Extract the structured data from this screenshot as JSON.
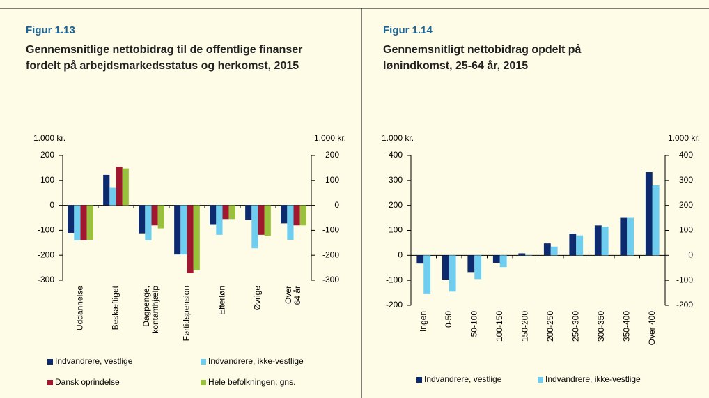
{
  "chart_data": [
    {
      "type": "bar",
      "title": "Figur 1.13",
      "subtitle": "Gennemsnitlige nettobidrag til de offentlige finanser fordelt på arbejdsmarkedsstatus og herkomst, 2015",
      "y_unit": "1.000 kr.",
      "y2_unit": "1.000 kr.",
      "categories": [
        "Uddannelse",
        "Beskæftiget",
        "Dagpenge, kontanthjælp",
        "Førtidspension",
        "Efterløn",
        "Øvrige",
        "Over 64 år"
      ],
      "series": [
        {
          "name": "Indvandrere, vestlige",
          "color": "#0d2a6e",
          "values": [
            -110,
            122,
            -112,
            -197,
            -78,
            -58,
            -72
          ]
        },
        {
          "name": "Indvandrere, ikke-vestlige",
          "color": "#6fcdf0",
          "values": [
            -140,
            70,
            -140,
            -197,
            -118,
            -172,
            -138
          ]
        },
        {
          "name": "Dansk oprindelse",
          "color": "#a0172f",
          "values": [
            -140,
            155,
            -80,
            -272,
            -55,
            -118,
            -80
          ]
        },
        {
          "name": "Hele befolkningen, gns.",
          "color": "#99c13c",
          "values": [
            -138,
            148,
            -92,
            -260,
            -55,
            -122,
            -80
          ]
        }
      ],
      "ylim": [
        -300,
        200
      ],
      "yticks": [
        -300,
        -200,
        -100,
        0,
        100,
        200
      ],
      "y2lim": [
        -300,
        200
      ],
      "y2ticks": [
        -300,
        -200,
        -100,
        0,
        100,
        200
      ]
    },
    {
      "type": "bar",
      "title": "Figur 1.14",
      "subtitle": "Gennemsnitligt nettobidrag opdelt på lønindkomst, 25-64 år, 2015",
      "y_unit": "1.000 kr.",
      "y2_unit": "1.000 kr.",
      "categories": [
        "Ingen",
        "0-50",
        "50-100",
        "100-150",
        "150-200",
        "200-250",
        "250-300",
        "300-350",
        "350-400",
        "Over 400"
      ],
      "series": [
        {
          "name": "Indvandrere, vestlige",
          "color": "#0d2a6e",
          "values": [
            -33,
            -97,
            -67,
            -30,
            8,
            48,
            87,
            120,
            150,
            333
          ]
        },
        {
          "name": "Indvandrere, ikke-vestlige",
          "color": "#6fcdf0",
          "values": [
            -155,
            -145,
            -95,
            -47,
            2,
            35,
            80,
            115,
            150,
            280
          ]
        }
      ],
      "ylim": [
        -200,
        400
      ],
      "yticks": [
        -200,
        -100,
        0,
        100,
        200,
        300,
        400
      ],
      "y2lim": [
        -200,
        400
      ],
      "y2ticks": [
        -200,
        -100,
        0,
        100,
        200,
        300,
        400
      ]
    }
  ]
}
